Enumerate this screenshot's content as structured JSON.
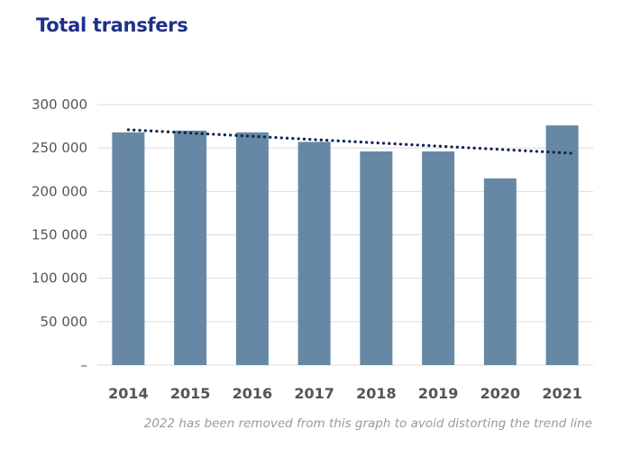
{
  "chart_data": {
    "type": "bar",
    "title": "Total transfers",
    "categories": [
      "2014",
      "2015",
      "2016",
      "2017",
      "2018",
      "2019",
      "2020",
      "2021"
    ],
    "values": [
      268000,
      270000,
      268000,
      257000,
      246000,
      246000,
      215000,
      276000
    ],
    "ylim": [
      0,
      300000
    ],
    "yticks": [
      0,
      50000,
      100000,
      150000,
      200000,
      250000,
      300000
    ],
    "ytick_labels": [
      "–",
      "50 000",
      "100 000",
      "150 000",
      "200 000",
      "250 000",
      "300 000"
    ],
    "xlabel": "",
    "ylabel": "",
    "grid": true,
    "bar_color": "#6688a5",
    "trendline": {
      "style": "dotted",
      "color": "#0d2452",
      "start": {
        "category": "2014",
        "value": 271000
      },
      "end": {
        "category": "2021",
        "value": 244000
      }
    },
    "footnote": "2022 has been removed from this graph to avoid distorting the trend line"
  }
}
